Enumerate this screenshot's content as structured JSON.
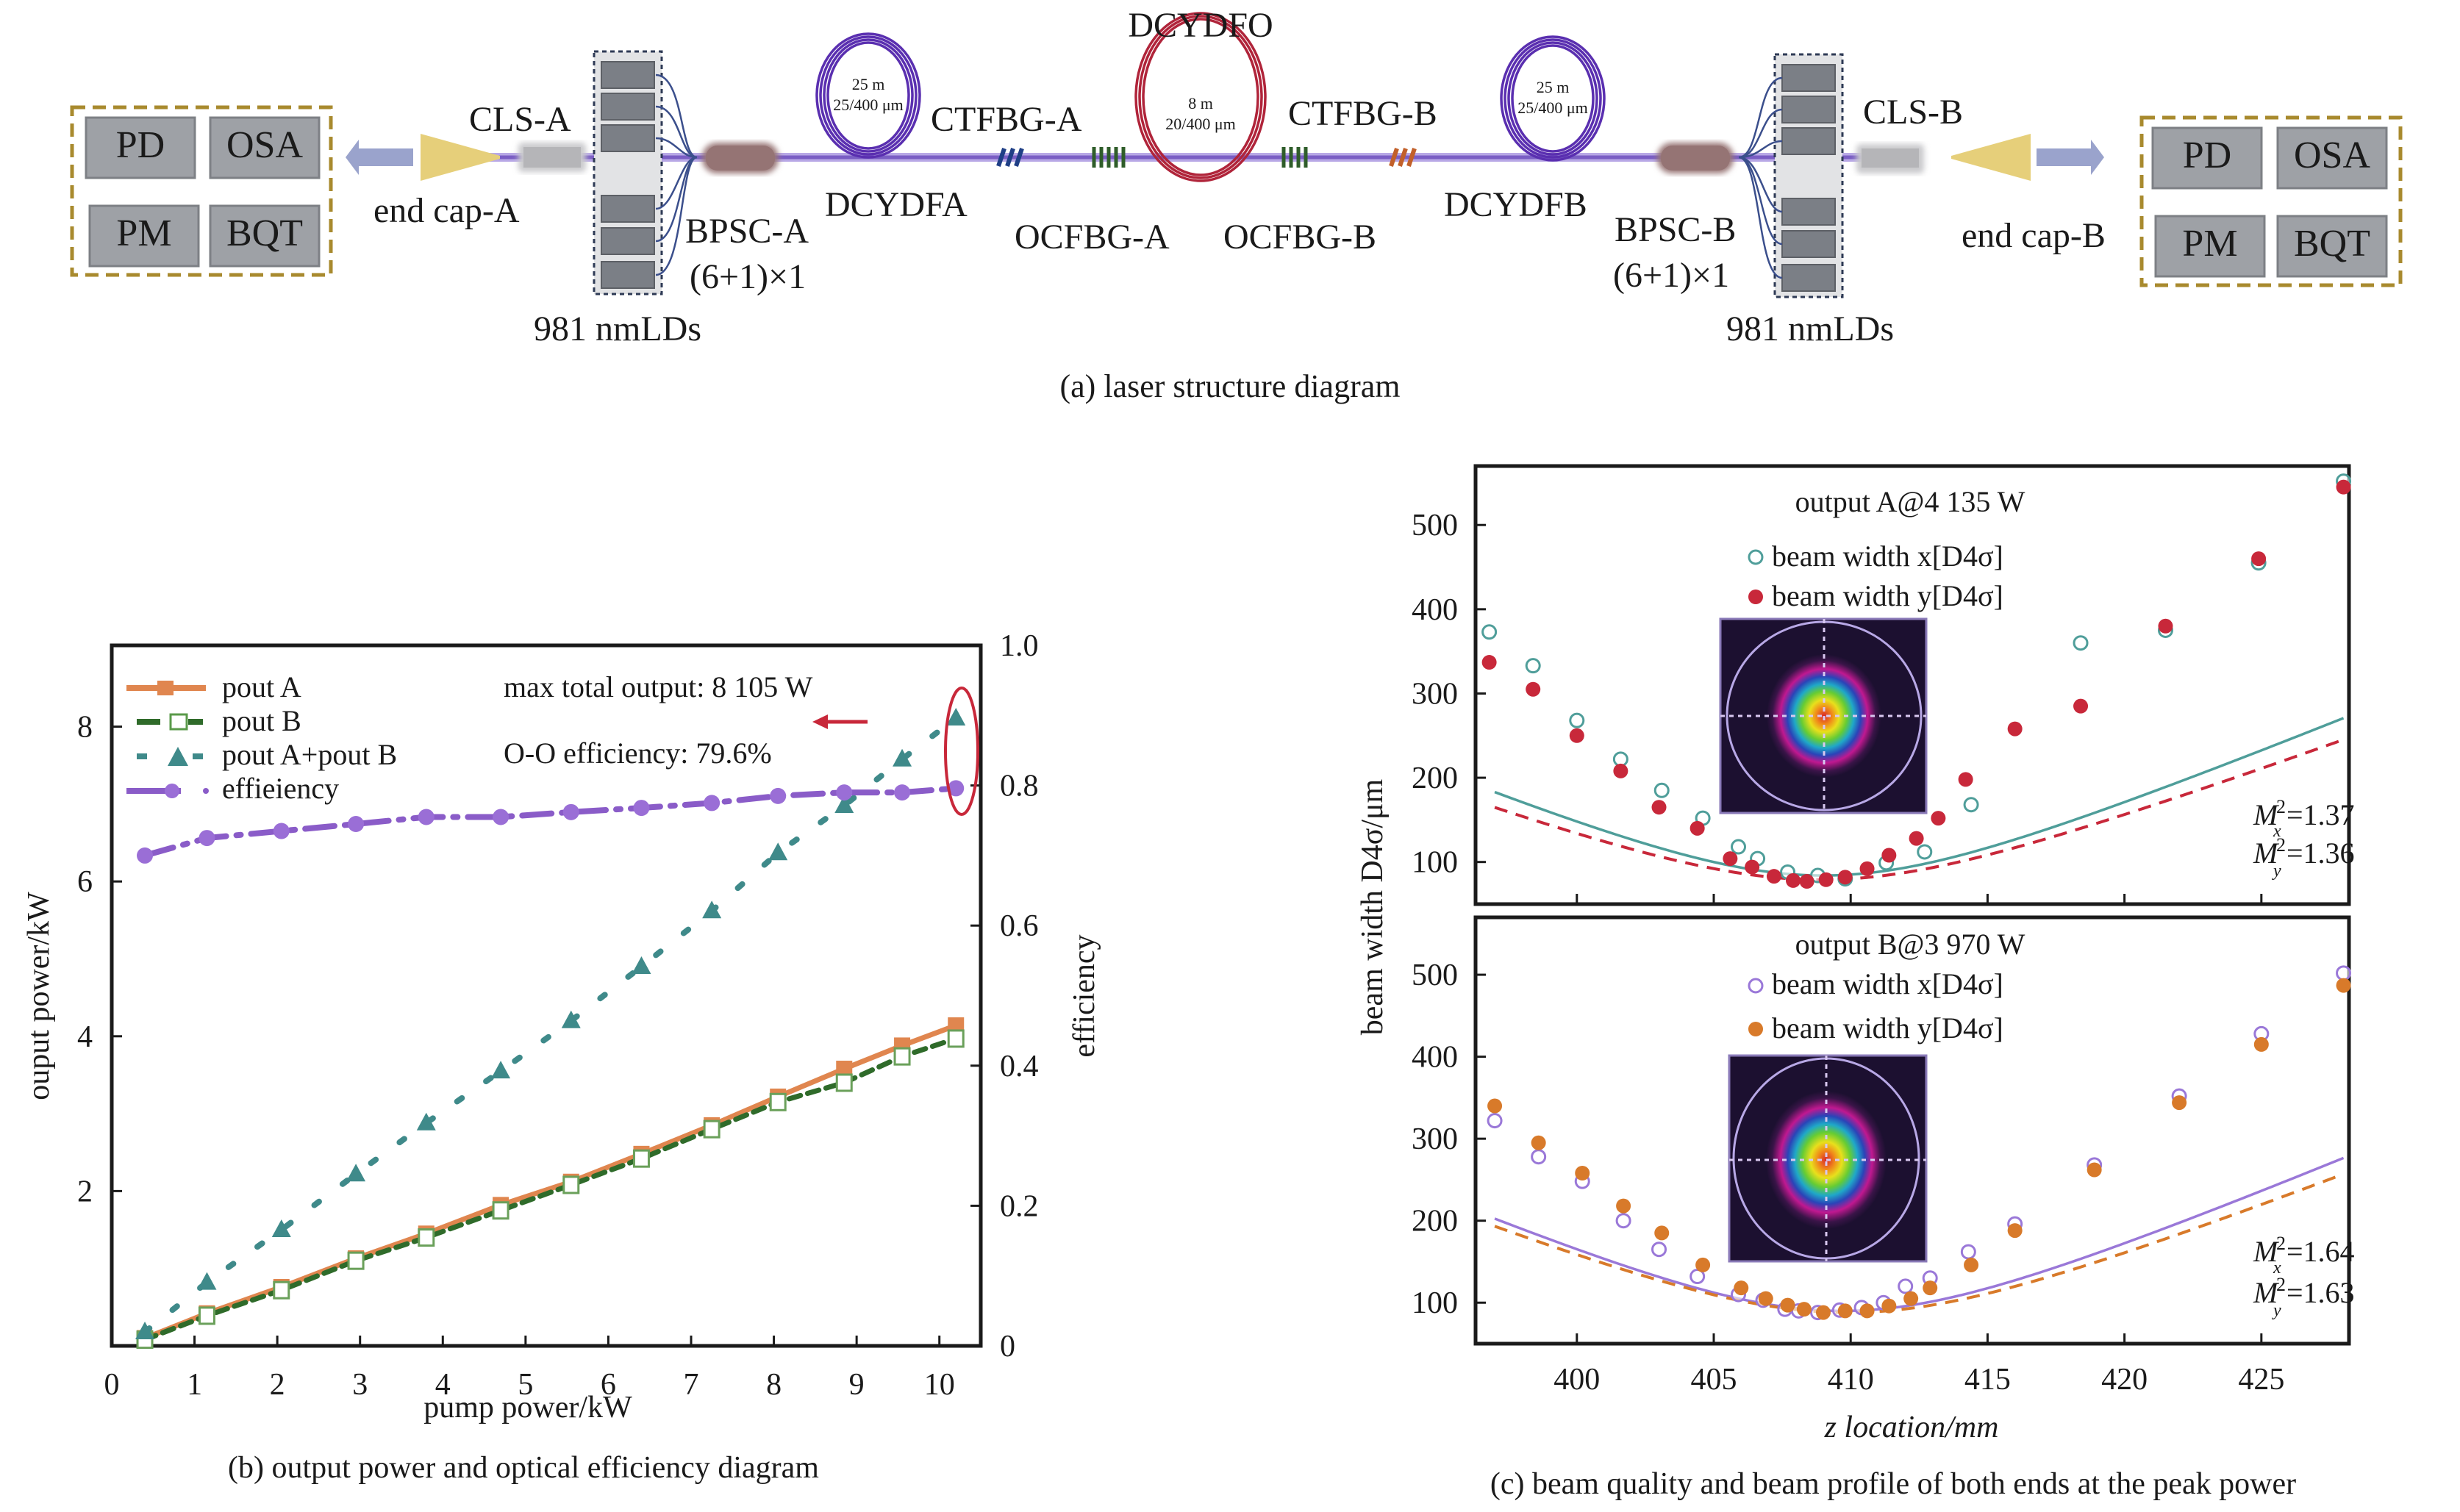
{
  "panel_a": {
    "caption": "(a) laser structure diagram",
    "instruments_left": [
      "PD",
      "OSA",
      "PM",
      "BQT"
    ],
    "instruments_right": [
      "PD",
      "OSA",
      "PM",
      "BQT"
    ],
    "labels": {
      "cls_a": "CLS-A",
      "cls_b": "CLS-B",
      "end_cap_a": "end cap-A",
      "end_cap_b": "end cap-B",
      "bpsc_a": "BPSC-A",
      "bpsc_b": "BPSC-B",
      "combiner_a": "(6+1)×1",
      "combiner_b": "(6+1)×1",
      "lds_a": "981 nmLDs",
      "lds_b": "981 nmLDs",
      "dcydfa": "DCYDFA",
      "dcydfb": "DCYDFB",
      "dcydfo": "DCYDFO",
      "ctfbg_a": "CTFBG-A",
      "ctfbg_b": "CTFBG-B",
      "ocfbg_a": "OCFBG-A",
      "ocfbg_b": "OCFBG-B"
    },
    "coils": {
      "a": {
        "length": "25 m",
        "core": "25/400 μm"
      },
      "o": {
        "length": "8 m",
        "core": "20/400 μm"
      },
      "b": {
        "length": "25 m",
        "core": "25/400 μm"
      }
    },
    "colors": {
      "fiber": "#8a6fc8",
      "gain_coil": "#5a2fb0",
      "osc_coil": "#b0243a",
      "ld": "#7b7f86",
      "combiner": "#9a7878",
      "end_cap": "#e6cf7a",
      "arrow": "#9aa3cc",
      "box_border": "#a88a2e",
      "ctfbg_a": "#1f3f86",
      "ctfbg_b": "#c2602a",
      "ocfbg": "#2f5d2a"
    }
  },
  "chart_data": [
    {
      "id": "b",
      "type": "line",
      "title": "",
      "caption": "(b) output power and optical efficiency diagram",
      "xlabel": "pump power/kW",
      "ylabel": "ouput power/kW",
      "y2label": "efficiency",
      "xlim": [
        0,
        10.5
      ],
      "ylim": [
        0,
        9.05
      ],
      "y2lim": [
        0,
        1.0
      ],
      "xticks": [
        0,
        1,
        2,
        3,
        4,
        5,
        6,
        7,
        8,
        9,
        10
      ],
      "yticks": [
        2,
        4,
        6,
        8
      ],
      "y2ticks": [
        "0",
        "0.2",
        "0.4",
        "0.6",
        "0.8",
        "1.0"
      ],
      "legend_position": "top-left",
      "x": [
        0.4,
        1.15,
        2.05,
        2.95,
        3.8,
        4.7,
        5.55,
        6.4,
        7.25,
        8.05,
        8.85,
        9.55,
        10.2
      ],
      "series": [
        {
          "name": "pout A",
          "axis": "left",
          "color": "#e0864f",
          "values": [
            0.1,
            0.42,
            0.76,
            1.13,
            1.45,
            1.82,
            2.12,
            2.48,
            2.85,
            3.22,
            3.58,
            3.88,
            4.14
          ]
        },
        {
          "name": "pout B",
          "axis": "left",
          "color": "#2f6b2a",
          "values": [
            0.08,
            0.39,
            0.72,
            1.1,
            1.4,
            1.75,
            2.08,
            2.42,
            2.8,
            3.15,
            3.4,
            3.74,
            3.97
          ]
        },
        {
          "name": "pout A+pout B",
          "axis": "left",
          "color": "#3f8a8a",
          "values": [
            0.18,
            0.82,
            1.5,
            2.22,
            2.88,
            3.55,
            4.2,
            4.9,
            5.62,
            6.37,
            6.98,
            7.58,
            8.11
          ]
        },
        {
          "name": "effieiency",
          "axis": "right",
          "color": "#8a5cc8",
          "values": [
            0.7,
            0.725,
            0.735,
            0.745,
            0.755,
            0.755,
            0.762,
            0.768,
            0.775,
            0.785,
            0.79,
            0.79,
            0.796
          ]
        }
      ],
      "annotations": {
        "max_total": "max total output: 8 105 W",
        "oo_eff": "O-O efficiency: 79.6%"
      }
    },
    {
      "id": "c_top",
      "type": "scatter",
      "title": "output A@4 135 W",
      "caption": "(c) beam quality and beam profile of both ends at the peak power",
      "xlabel": "z location/mm",
      "ylabel": "beam width D4σ/μm",
      "xlim": [
        396.3,
        428.2
      ],
      "ylim": [
        50,
        570
      ],
      "yticks": [
        100,
        200,
        300,
        400,
        500
      ],
      "xticks": [
        400,
        405,
        410,
        415,
        420,
        425
      ],
      "legend_position": "top-center",
      "series": [
        {
          "name": "beam width x[D4σ]",
          "marker": "open-circle",
          "color": "#4f9e9a",
          "x": [
            396.8,
            398.4,
            400.0,
            401.6,
            403.1,
            404.6,
            405.9,
            406.6,
            407.7,
            408.8,
            409.8,
            411.3,
            412.7,
            414.4,
            418.4,
            421.5,
            424.9,
            428.0
          ],
          "y": [
            373,
            333,
            268,
            222,
            185,
            152,
            118,
            104,
            88,
            84,
            80,
            99,
            112,
            168,
            360,
            375,
            455,
            552
          ]
        },
        {
          "name": "beam width y[D4σ]",
          "marker": "filled-circle",
          "color": "#c8283a",
          "x": [
            396.8,
            398.4,
            400.0,
            401.6,
            403.0,
            404.4,
            405.6,
            406.4,
            407.2,
            407.9,
            408.4,
            409.1,
            409.8,
            410.6,
            411.4,
            412.4,
            413.2,
            414.2,
            416.0,
            418.4,
            421.5,
            424.9,
            428.0
          ],
          "y": [
            337,
            305,
            250,
            208,
            165,
            140,
            104,
            94,
            83,
            78,
            77,
            79,
            82,
            92,
            108,
            128,
            152,
            198,
            258,
            285,
            380,
            460,
            545
          ]
        }
      ],
      "fit_lines": [
        {
          "series": "x",
          "style": "solid",
          "w0": 84,
          "z0": 409.0,
          "zr": 6.2
        },
        {
          "series": "y",
          "style": "dashed",
          "w0": 79,
          "z0": 408.9,
          "zr": 6.5
        }
      ],
      "m2": {
        "x_label": "M",
        "x_sub": "x",
        "x_val": "=1.37",
        "y_label": "M",
        "y_sub": "y",
        "y_val": "=1.36",
        "sup": "2"
      }
    },
    {
      "id": "c_bottom",
      "type": "scatter",
      "title": "output B@3 970 W",
      "xlabel": "z location/mm",
      "ylabel": "beam width D4σ/μm",
      "xlim": [
        396.3,
        428.2
      ],
      "ylim": [
        50,
        570
      ],
      "yticks": [
        100,
        200,
        300,
        400,
        500
      ],
      "xticks": [
        400,
        405,
        410,
        415,
        420,
        425
      ],
      "legend_position": "top-center",
      "series": [
        {
          "name": "beam width x[D4σ]",
          "marker": "open-circle",
          "color": "#9a78d8",
          "x": [
            397.0,
            398.6,
            400.2,
            401.7,
            403.0,
            404.4,
            405.9,
            406.8,
            407.6,
            408.1,
            408.8,
            409.6,
            410.4,
            411.2,
            412.0,
            412.9,
            414.3,
            416.0,
            418.9,
            422.0,
            425.0,
            428.0
          ],
          "y": [
            322,
            278,
            248,
            200,
            165,
            132,
            110,
            103,
            92,
            90,
            88,
            91,
            94,
            100,
            120,
            130,
            162,
            196,
            268,
            352,
            428,
            502
          ]
        },
        {
          "name": "beam width y[D4σ]",
          "marker": "filled-circle",
          "color": "#d87a2a",
          "x": [
            397.0,
            398.6,
            400.2,
            401.7,
            403.1,
            404.6,
            406.0,
            406.9,
            407.7,
            408.3,
            409.0,
            409.8,
            410.6,
            411.4,
            412.2,
            412.9,
            414.4,
            416.0,
            418.9,
            422.0,
            425.0,
            428.0
          ],
          "y": [
            340,
            295,
            258,
            218,
            185,
            146,
            118,
            105,
            97,
            92,
            88,
            90,
            90,
            96,
            105,
            118,
            146,
            188,
            262,
            344,
            415,
            487
          ]
        }
      ],
      "fit_lines": [
        {
          "series": "x",
          "style": "solid",
          "w0": 90,
          "z0": 409.7,
          "zr": 6.3
        },
        {
          "series": "y",
          "style": "dashed",
          "w0": 88,
          "z0": 409.9,
          "zr": 6.6
        }
      ],
      "m2": {
        "x_label": "M",
        "x_sub": "x",
        "x_val": "=1.64",
        "y_label": "M",
        "y_sub": "y",
        "y_val": "=1.63",
        "sup": "2"
      }
    }
  ]
}
